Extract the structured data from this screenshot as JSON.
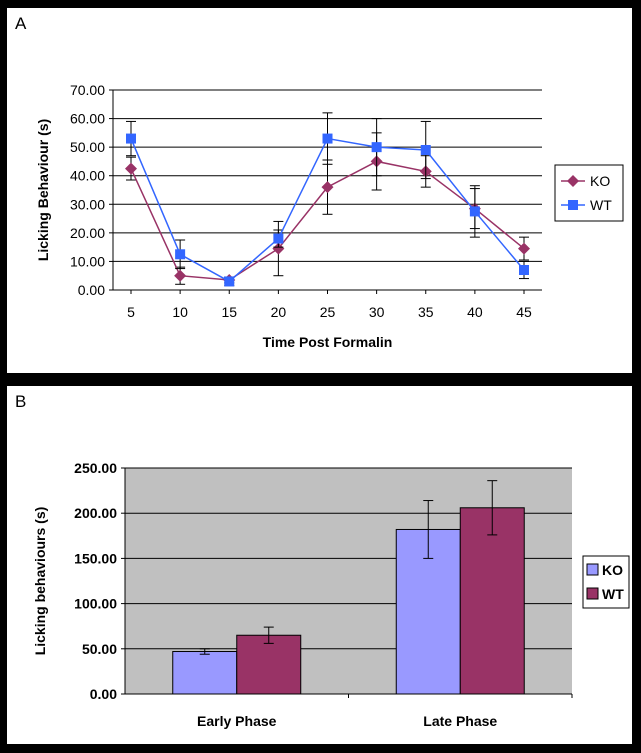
{
  "panels": {
    "a_label": "A",
    "b_label": "B"
  },
  "chart_data": [
    {
      "type": "line",
      "panel": "A",
      "title": "",
      "xlabel": "Time Post Formalin",
      "ylabel": "Licking Behaviour (s)",
      "categories": [
        "5",
        "10",
        "15",
        "20",
        "25",
        "30",
        "35",
        "40",
        "45"
      ],
      "y_ticks": [
        "0.00",
        "10.00",
        "20.00",
        "30.00",
        "40.00",
        "50.00",
        "60.00",
        "70.00"
      ],
      "ylim": [
        0,
        70
      ],
      "grid": true,
      "legend_position": "right",
      "series": [
        {
          "name": "KO",
          "color": "#993366",
          "marker": "diamond",
          "values": [
            42.5,
            5,
            3.5,
            14.5,
            36,
            45,
            41.5,
            28.5,
            14.5
          ],
          "errors": [
            4,
            3,
            1,
            9.5,
            9.5,
            10,
            5.5,
            7,
            4
          ]
        },
        {
          "name": "WT",
          "color": "#3366ff",
          "marker": "square",
          "values": [
            53,
            12.5,
            3,
            18,
            53,
            50,
            49,
            27.5,
            7
          ],
          "errors": [
            6,
            5,
            1.5,
            3,
            9,
            10,
            10,
            9,
            3
          ]
        }
      ]
    },
    {
      "type": "bar",
      "panel": "B",
      "title": "",
      "xlabel": "",
      "ylabel": "Licking behaviours (s)",
      "categories": [
        "Early Phase",
        "Late Phase"
      ],
      "y_ticks": [
        "0.00",
        "50.00",
        "100.00",
        "150.00",
        "200.00",
        "250.00"
      ],
      "ylim": [
        0,
        250
      ],
      "grid": true,
      "plot_background": "#c0c0c0",
      "legend_position": "right",
      "series": [
        {
          "name": "KO",
          "color": "#9999ff",
          "values": [
            47,
            182
          ],
          "errors": [
            3,
            32
          ]
        },
        {
          "name": "WT",
          "color": "#993366",
          "values": [
            65,
            206
          ],
          "errors": [
            9,
            30
          ]
        }
      ]
    }
  ]
}
